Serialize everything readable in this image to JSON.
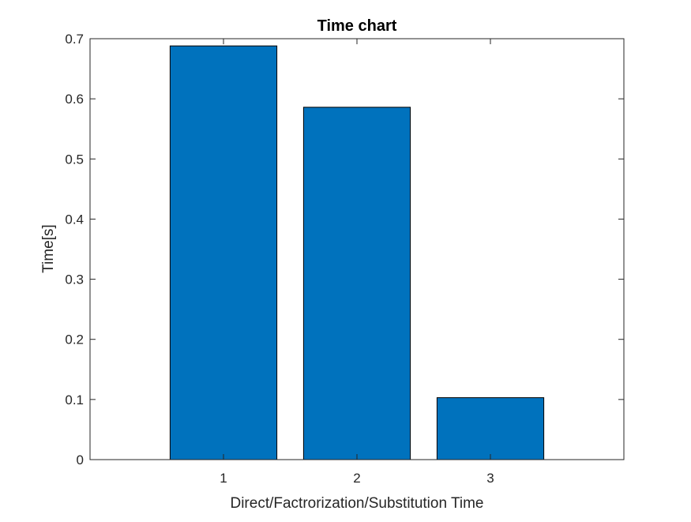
{
  "chart_data": {
    "type": "bar",
    "title": "Time chart",
    "xlabel": "Direct/Factrorization/Substitution Time",
    "ylabel": "Time[s]",
    "categories": [
      "1",
      "2",
      "3"
    ],
    "values": [
      0.688,
      0.586,
      0.103
    ],
    "xlim": [
      0,
      4
    ],
    "ylim": [
      0,
      0.7
    ],
    "yticks": [
      0,
      0.1,
      0.2,
      0.3,
      0.4,
      0.5,
      0.6,
      0.7
    ],
    "ytick_labels": [
      "0",
      "0.1",
      "0.2",
      "0.3",
      "0.4",
      "0.5",
      "0.6",
      "0.7"
    ],
    "grid": false,
    "legend": "none",
    "colors": {
      "bar_fill": "#0072BD",
      "bar_edge": "#000000",
      "axis": "#262626"
    }
  }
}
